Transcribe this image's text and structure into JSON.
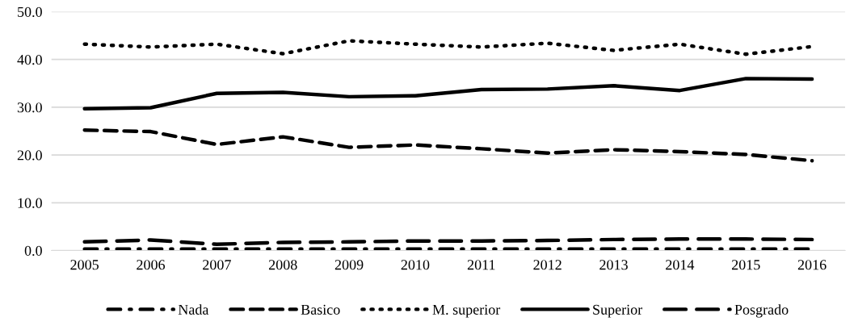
{
  "chart_data": {
    "type": "line",
    "categories": [
      "2005",
      "2006",
      "2007",
      "2008",
      "2009",
      "2010",
      "2011",
      "2012",
      "2013",
      "2014",
      "2015",
      "2016"
    ],
    "series": [
      {
        "name": "Nada",
        "color": "#000000",
        "line_style": "dashdot",
        "values": [
          0.3,
          0.3,
          0.3,
          0.3,
          0.3,
          0.3,
          0.3,
          0.3,
          0.3,
          0.3,
          0.3,
          0.3
        ]
      },
      {
        "name": "Basico",
        "color": "#000000",
        "line_style": "dashed",
        "values": [
          25.2,
          24.9,
          22.2,
          23.8,
          21.6,
          22.1,
          21.3,
          20.4,
          21.1,
          20.7,
          20.1,
          18.8
        ]
      },
      {
        "name": "M. superior",
        "color": "#000000",
        "line_style": "dotted",
        "values": [
          43.2,
          42.6,
          43.2,
          41.2,
          43.9,
          43.2,
          42.6,
          43.4,
          41.9,
          43.2,
          41.1,
          42.7
        ]
      },
      {
        "name": "Superior",
        "color": "#000000",
        "line_style": "solid",
        "values": [
          29.7,
          29.9,
          32.9,
          33.1,
          32.2,
          32.4,
          33.7,
          33.8,
          34.5,
          33.5,
          36.0,
          35.9
        ]
      },
      {
        "name": "Posgrado",
        "color": "#000000",
        "line_style": "longdash",
        "values": [
          1.8,
          2.2,
          1.3,
          1.7,
          1.8,
          2.0,
          2.0,
          2.1,
          2.3,
          2.4,
          2.4,
          2.3
        ]
      }
    ],
    "ylim": [
      0,
      50
    ],
    "yticks": [
      {
        "value": 0,
        "label": "0.0"
      },
      {
        "value": 10,
        "label": "10.0"
      },
      {
        "value": 20,
        "label": "20.0"
      },
      {
        "value": 30,
        "label": "30.0"
      },
      {
        "value": 40,
        "label": "40.0"
      },
      {
        "value": 50,
        "label": "50.0"
      }
    ],
    "grid": "y",
    "legend": "bottom",
    "marker": "none"
  }
}
